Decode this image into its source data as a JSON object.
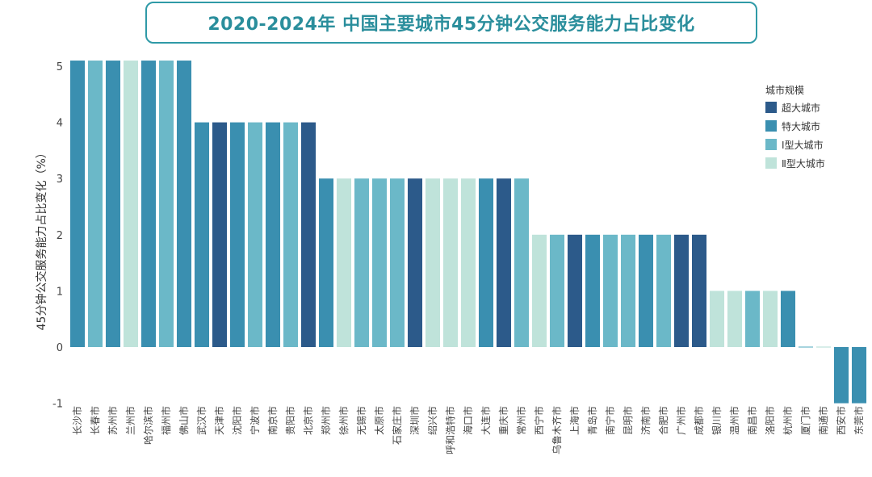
{
  "chart_data": {
    "type": "bar",
    "title": "2020-2024年 中国主要城市45分钟公交服务能力占比变化",
    "xlabel": "",
    "ylabel": "45分钟公交服务能力占比变化（%）",
    "ylim": [
      -1,
      5
    ],
    "yticks": [
      -1,
      0,
      1,
      2,
      3,
      4,
      5
    ],
    "legend": {
      "title": "城市规模",
      "position": "top-right",
      "entries": [
        {
          "name": "超大城市",
          "color": "#2c5a8a"
        },
        {
          "name": "特大城市",
          "color": "#3a8fb0"
        },
        {
          "name": "Ⅰ型大城市",
          "color": "#6bb8c8"
        },
        {
          "name": "Ⅱ型大城市",
          "color": "#bfe3da"
        }
      ]
    },
    "categories": [
      "长沙市",
      "长春市",
      "苏州市",
      "兰州市",
      "哈尔滨市",
      "福州市",
      "佛山市",
      "武汉市",
      "天津市",
      "沈阳市",
      "宁波市",
      "南京市",
      "贵阳市",
      "北京市",
      "郑州市",
      "徐州市",
      "无锡市",
      "太原市",
      "石家庄市",
      "深圳市",
      "绍兴市",
      "呼和浩特市",
      "海口市",
      "大连市",
      "重庆市",
      "常州市",
      "西宁市",
      "乌鲁木齐市",
      "上海市",
      "青岛市",
      "南宁市",
      "昆明市",
      "济南市",
      "合肥市",
      "广州市",
      "成都市",
      "银川市",
      "温州市",
      "南昌市",
      "洛阳市",
      "杭州市",
      "厦门市",
      "南通市",
      "西安市",
      "东莞市"
    ],
    "values": [
      5.1,
      5.1,
      5.1,
      5.1,
      5.1,
      5.1,
      5.1,
      4,
      4,
      4,
      4,
      4,
      4,
      4,
      3,
      3,
      3,
      3,
      3,
      3,
      3,
      3,
      3,
      3,
      3,
      3,
      2,
      2,
      2,
      2,
      2,
      2,
      2,
      2,
      2,
      2,
      1,
      1,
      1,
      1,
      1,
      0,
      0,
      -1,
      -1
    ],
    "groups": [
      "特大城市",
      "Ⅰ型大城市",
      "特大城市",
      "Ⅱ型大城市",
      "特大城市",
      "Ⅰ型大城市",
      "特大城市",
      "特大城市",
      "超大城市",
      "特大城市",
      "Ⅰ型大城市",
      "特大城市",
      "Ⅰ型大城市",
      "超大城市",
      "特大城市",
      "Ⅱ型大城市",
      "Ⅰ型大城市",
      "Ⅰ型大城市",
      "Ⅰ型大城市",
      "超大城市",
      "Ⅱ型大城市",
      "Ⅱ型大城市",
      "Ⅱ型大城市",
      "特大城市",
      "超大城市",
      "Ⅰ型大城市",
      "Ⅱ型大城市",
      "Ⅰ型大城市",
      "超大城市",
      "特大城市",
      "Ⅰ型大城市",
      "Ⅰ型大城市",
      "特大城市",
      "Ⅰ型大城市",
      "超大城市",
      "超大城市",
      "Ⅱ型大城市",
      "Ⅱ型大城市",
      "Ⅰ型大城市",
      "Ⅱ型大城市",
      "特大城市",
      "Ⅰ型大城市",
      "Ⅱ型大城市",
      "特大城市",
      "特大城市"
    ]
  }
}
